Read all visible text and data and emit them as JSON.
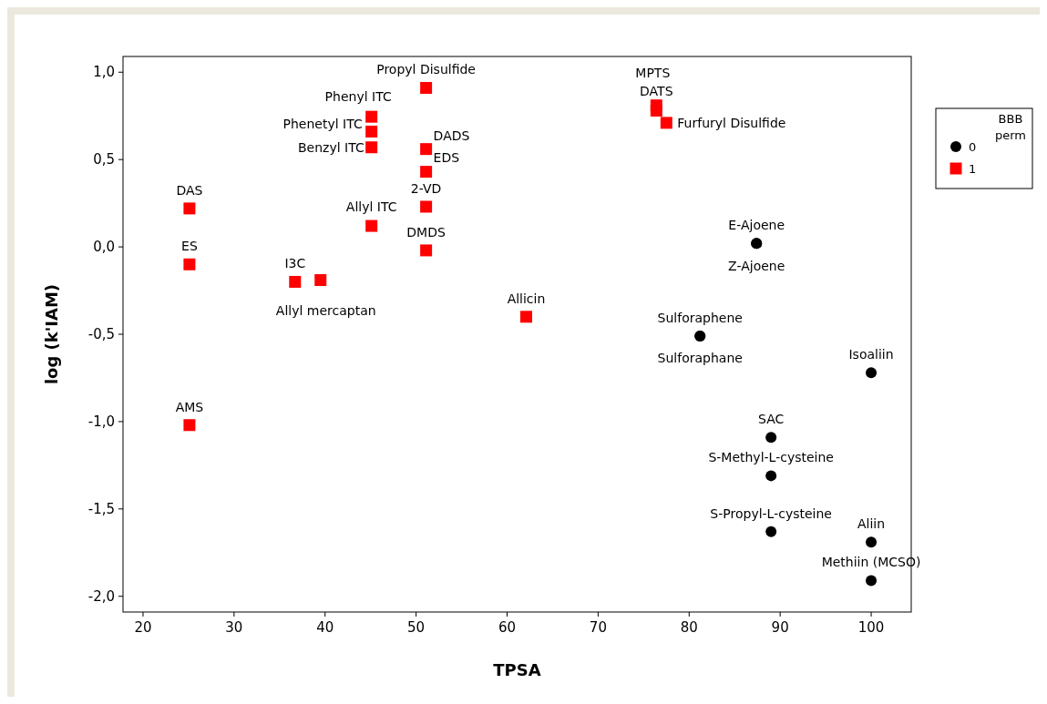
{
  "chart_data": {
    "type": "scatter",
    "xlabel": "TPSA",
    "ylabel": "log (k'IAM)",
    "legend_title": "BBB perm",
    "legend": "right",
    "xlim": [
      17.8,
      104.4
    ],
    "xticks": [
      20,
      30,
      40,
      50,
      60,
      70,
      80,
      90,
      100
    ],
    "ylim": [
      -2.09,
      1.09
    ],
    "yticks": [
      {
        "value": -2,
        "label": "-2,0"
      },
      {
        "value": -1.5,
        "label": "-1,5"
      },
      {
        "value": -1,
        "label": "-1,0"
      },
      {
        "value": -0.5,
        "label": "-0,5"
      },
      {
        "value": 0,
        "label": "0,0"
      },
      {
        "value": 0.5,
        "label": "0,5"
      },
      {
        "value": 1,
        "label": "1,0"
      }
    ],
    "grid": false,
    "series": [
      {
        "name": "0",
        "color": "#000000",
        "marker": "circle",
        "x": [
          87.4,
          87.4,
          81.2,
          81.2,
          100,
          89,
          89,
          89,
          100,
          100
        ],
        "values": [
          0.02,
          0.02,
          -0.51,
          -0.51,
          -0.72,
          -1.09,
          -1.31,
          -1.63,
          -1.69,
          -1.91
        ]
      },
      {
        "name": "1",
        "color": "#ff0000",
        "marker": "square",
        "x": [
          51.1,
          45.1,
          45.1,
          45.1,
          51.1,
          51.1,
          51.1,
          51.1,
          45.1,
          25.1,
          25.1,
          25.1,
          36.7,
          39.5,
          62.1,
          76.4,
          76.4,
          77.5
        ],
        "values": [
          0.91,
          0.745,
          0.66,
          0.57,
          0.56,
          0.43,
          0.23,
          -0.02,
          0.12,
          0.22,
          -0.1,
          -1.02,
          -0.2,
          -0.19,
          -0.4,
          0.81,
          0.78,
          0.71
        ]
      }
    ],
    "annotations": [
      {
        "text": "E-Ajoene",
        "x": 87.4,
        "y": 0.02
      },
      {
        "text": "Z-Ajoene",
        "x": 87.4,
        "y": 0.02
      },
      {
        "text": "Sulforaphene",
        "x": 81.2,
        "y": -0.51
      },
      {
        "text": "Sulforaphane",
        "x": 81.2,
        "y": -0.51
      },
      {
        "text": "Isoaliin",
        "x": 100,
        "y": -0.72
      },
      {
        "text": "SAC",
        "x": 89,
        "y": -1.09
      },
      {
        "text": "S-Methyl-L-cysteine",
        "x": 89,
        "y": -1.31
      },
      {
        "text": "S-Propyl-L-cysteine",
        "x": 89,
        "y": -1.63
      },
      {
        "text": "Aliin",
        "x": 100,
        "y": -1.69
      },
      {
        "text": "Methiin (MCSO)",
        "x": 100,
        "y": -1.91
      },
      {
        "text": "Propyl Disulfide",
        "x": 51.1,
        "y": 0.91
      },
      {
        "text": "Phenyl ITC",
        "x": 45.1,
        "y": 0.745
      },
      {
        "text": "Phenetyl ITC",
        "x": 45.1,
        "y": 0.66
      },
      {
        "text": "Benzyl ITC",
        "x": 45.1,
        "y": 0.57
      },
      {
        "text": "DADS",
        "x": 51.1,
        "y": 0.56
      },
      {
        "text": "EDS",
        "x": 51.1,
        "y": 0.43
      },
      {
        "text": "2-VD",
        "x": 51.1,
        "y": 0.23
      },
      {
        "text": "DMDS",
        "x": 51.1,
        "y": -0.02
      },
      {
        "text": "Allyl ITC",
        "x": 45.1,
        "y": 0.12
      },
      {
        "text": "DAS",
        "x": 25.1,
        "y": 0.22
      },
      {
        "text": "ES",
        "x": 25.1,
        "y": -0.1
      },
      {
        "text": "AMS",
        "x": 25.1,
        "y": -1.02
      },
      {
        "text": "I3C",
        "x": 36.7,
        "y": -0.2
      },
      {
        "text": "Allyl mercaptan",
        "x": 39.5,
        "y": -0.19
      },
      {
        "text": "Allicin",
        "x": 62.1,
        "y": -0.4
      },
      {
        "text": "MPTS",
        "x": 76.4,
        "y": 0.81
      },
      {
        "text": "DATS",
        "x": 76.4,
        "y": 0.78
      },
      {
        "text": "Furfuryl Disulfide",
        "x": 77.5,
        "y": 0.71
      }
    ]
  }
}
